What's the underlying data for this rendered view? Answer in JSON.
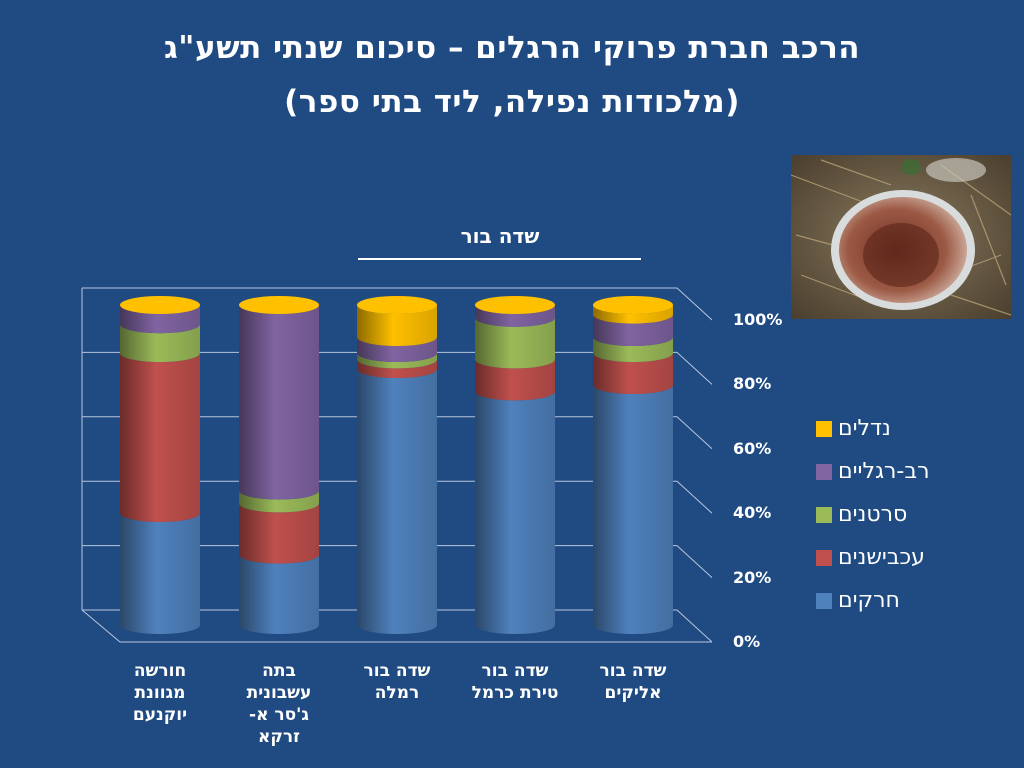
{
  "slide": {
    "title_line1": "הרכב חברת פרוקי הרגלים – סיכום שנתי תשע\"ג",
    "title_line2": "(מלכודות נפילה, ליד בתי ספר)"
  },
  "colors": {
    "background": "#1F4A82",
    "beetles": "#4F81BD",
    "isopods": "#C0504D",
    "crustaceans": "#9BBB59",
    "millipedes": "#8064A2",
    "ants": "#FFC000"
  },
  "photo": {
    "icon": "pitfall-trap-photo"
  },
  "chart_data": {
    "type": "bar",
    "stacked": "percent",
    "title": "שדה בור",
    "categories": [
      "חורשה מגוונת יוקנעם",
      "בתה עשבונית ג'סר א-זרקא",
      "שדה בור רמלה",
      "שדה בור טירת כרמל",
      "שדה בור אליקים"
    ],
    "category_lines": [
      [
        "חורשה",
        "מגוונת",
        "יוקנעם"
      ],
      [
        "בתה",
        "עשבונית",
        "ג'סר א-",
        "זרקא"
      ],
      [
        "שדה בור",
        "רמלה"
      ],
      [
        "שדה בור",
        "טירת כרמל"
      ],
      [
        "שדה בור",
        "אליקים"
      ]
    ],
    "series": [
      {
        "name": "חרקים",
        "color": "#4F81BD",
        "values": [
          35,
          22,
          80,
          73,
          75
        ]
      },
      {
        "name": "עכבישנים",
        "color": "#C0504D",
        "values": [
          50,
          16,
          3,
          10,
          10
        ]
      },
      {
        "name": "סרטנים",
        "color": "#9BBB59",
        "values": [
          9,
          4,
          2,
          13,
          5
        ]
      },
      {
        "name": "רב-רגליים",
        "color": "#8064A2",
        "values": [
          6,
          58,
          5,
          4,
          7
        ]
      },
      {
        "name": "נדלים",
        "color": "#FFC000",
        "values": [
          0,
          0,
          10,
          0,
          3
        ]
      }
    ],
    "legend_order": [
      "נדלים",
      "רב-רגליים",
      "סרטנים",
      "עכבישנים",
      "חרקים"
    ],
    "y_ticks": [
      "0%",
      "20%",
      "40%",
      "60%",
      "80%",
      "100%"
    ],
    "ylim": [
      0,
      100
    ],
    "grid": true,
    "legend_position": "right"
  }
}
